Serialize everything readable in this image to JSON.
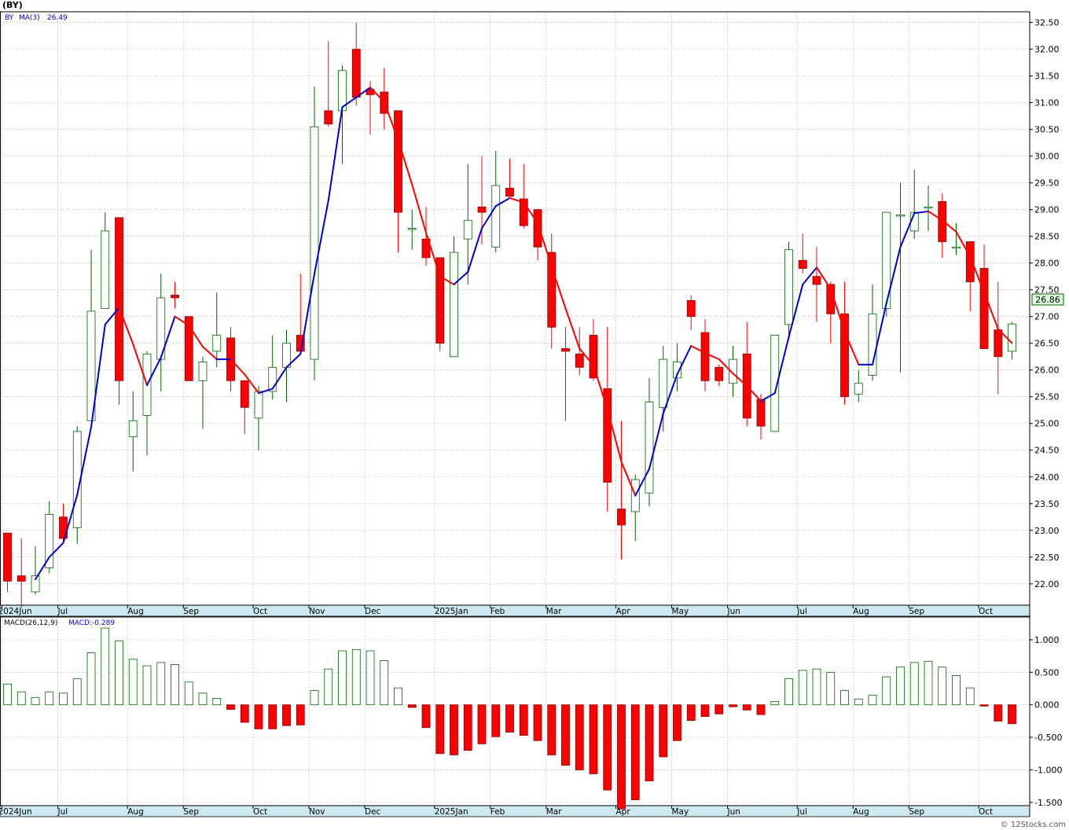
{
  "ticker_title": "(BY)",
  "legend_symbol": "BY",
  "legend_ma": "MA(3)",
  "legend_ma_value": "26.49",
  "last_price_label": "26.86",
  "macd_label": "MACD(26,12,9)",
  "macd_value_label": "MACD:-0.289",
  "watermark": "© 12Stocks.com",
  "colors": {
    "up": "#006400",
    "down": "#ff0000",
    "ma_up": "#0000cc",
    "ma_down": "#ff0000",
    "axis_band": "#cde8f0",
    "grid": "#bbbbbb",
    "legend_text": "#0000cc",
    "last_price_bg": "#ddffdd"
  },
  "chart_data": [
    {
      "type": "candlestick",
      "name": "price",
      "y_ticks": [
        "22.00",
        "22.50",
        "23.00",
        "23.50",
        "24.00",
        "24.50",
        "25.00",
        "25.50",
        "26.00",
        "26.50",
        "27.00",
        "27.50",
        "28.00",
        "28.50",
        "29.00",
        "29.50",
        "30.00",
        "30.50",
        "31.00",
        "31.50",
        "32.00",
        "32.50"
      ],
      "ylim": [
        21.6,
        32.7
      ],
      "x_tick_labels": [
        "2024Jun",
        "Jul",
        "Aug",
        "Sep",
        "Oct",
        "Nov",
        "Dec",
        "2025Jan",
        "Feb",
        "Mar",
        "Apr",
        "May",
        "Jun",
        "Jul",
        "Aug",
        "Sep",
        "Oct"
      ],
      "x_tick_week_index": [
        0,
        4,
        9,
        13,
        18,
        22,
        26,
        31,
        35,
        39,
        44,
        48,
        52,
        57,
        61,
        65,
        70
      ],
      "grid": true,
      "ma_period": 3,
      "candles": [
        {
          "o": 22.95,
          "h": 22.95,
          "l": 21.85,
          "c": 22.05
        },
        {
          "o": 22.15,
          "h": 22.85,
          "l": 21.55,
          "c": 22.05
        },
        {
          "o": 21.85,
          "h": 22.7,
          "l": 21.8,
          "c": 22.15
        },
        {
          "o": 22.3,
          "h": 23.55,
          "l": 22.2,
          "c": 23.3
        },
        {
          "o": 23.25,
          "h": 23.5,
          "l": 22.75,
          "c": 22.85
        },
        {
          "o": 23.05,
          "h": 24.95,
          "l": 22.75,
          "c": 24.85
        },
        {
          "o": 25.05,
          "h": 28.25,
          "l": 25.05,
          "c": 27.1
        },
        {
          "o": 27.15,
          "h": 28.95,
          "l": 27.15,
          "c": 28.6
        },
        {
          "o": 28.85,
          "h": 28.85,
          "l": 25.35,
          "c": 25.8
        },
        {
          "o": 24.75,
          "h": 25.6,
          "l": 24.1,
          "c": 25.05
        },
        {
          "o": 25.15,
          "h": 26.35,
          "l": 24.4,
          "c": 26.3
        },
        {
          "o": 26.2,
          "h": 27.8,
          "l": 25.6,
          "c": 27.35
        },
        {
          "o": 27.4,
          "h": 27.65,
          "l": 27.15,
          "c": 27.35
        },
        {
          "o": 27.0,
          "h": 27.0,
          "l": 25.8,
          "c": 25.8
        },
        {
          "o": 25.8,
          "h": 26.25,
          "l": 24.9,
          "c": 26.15
        },
        {
          "o": 26.35,
          "h": 27.45,
          "l": 26.05,
          "c": 26.65
        },
        {
          "o": 26.6,
          "h": 26.8,
          "l": 25.6,
          "c": 25.8
        },
        {
          "o": 25.8,
          "h": 25.8,
          "l": 24.8,
          "c": 25.3
        },
        {
          "o": 25.1,
          "h": 25.7,
          "l": 24.5,
          "c": 25.6
        },
        {
          "o": 25.6,
          "h": 26.65,
          "l": 25.45,
          "c": 26.05
        },
        {
          "o": 26.05,
          "h": 26.75,
          "l": 25.4,
          "c": 26.5
        },
        {
          "o": 26.65,
          "h": 27.8,
          "l": 26.35,
          "c": 26.35
        },
        {
          "o": 26.2,
          "h": 31.3,
          "l": 25.8,
          "c": 30.55
        },
        {
          "o": 30.85,
          "h": 32.15,
          "l": 30.55,
          "c": 30.6
        },
        {
          "o": 30.85,
          "h": 31.7,
          "l": 29.85,
          "c": 31.6
        },
        {
          "o": 32.0,
          "h": 32.5,
          "l": 30.95,
          "c": 31.1
        },
        {
          "o": 31.25,
          "h": 31.4,
          "l": 30.4,
          "c": 31.15
        },
        {
          "o": 31.2,
          "h": 31.65,
          "l": 30.5,
          "c": 30.8
        },
        {
          "o": 30.85,
          "h": 30.85,
          "l": 28.2,
          "c": 28.95
        },
        {
          "o": 28.65,
          "h": 29.0,
          "l": 28.25,
          "c": 28.65
        },
        {
          "o": 28.45,
          "h": 29.05,
          "l": 27.95,
          "c": 28.1
        },
        {
          "o": 28.1,
          "h": 28.1,
          "l": 26.35,
          "c": 26.5
        },
        {
          "o": 26.25,
          "h": 28.5,
          "l": 26.25,
          "c": 28.2
        },
        {
          "o": 28.45,
          "h": 29.85,
          "l": 27.6,
          "c": 28.8
        },
        {
          "o": 29.05,
          "h": 30.0,
          "l": 28.35,
          "c": 28.95
        },
        {
          "o": 28.3,
          "h": 30.1,
          "l": 28.2,
          "c": 29.45
        },
        {
          "o": 29.4,
          "h": 29.95,
          "l": 29.2,
          "c": 29.25
        },
        {
          "o": 29.2,
          "h": 29.85,
          "l": 28.65,
          "c": 28.7
        },
        {
          "o": 29.0,
          "h": 29.0,
          "l": 28.05,
          "c": 28.3
        },
        {
          "o": 28.2,
          "h": 28.55,
          "l": 26.4,
          "c": 26.8
        },
        {
          "o": 26.4,
          "h": 26.8,
          "l": 25.05,
          "c": 26.35
        },
        {
          "o": 26.3,
          "h": 26.8,
          "l": 25.9,
          "c": 26.05
        },
        {
          "o": 26.65,
          "h": 26.95,
          "l": 25.8,
          "c": 25.85
        },
        {
          "o": 25.65,
          "h": 26.8,
          "l": 23.35,
          "c": 23.9
        },
        {
          "o": 23.4,
          "h": 25.05,
          "l": 22.45,
          "c": 23.1
        },
        {
          "o": 23.35,
          "h": 24.05,
          "l": 22.8,
          "c": 23.95
        },
        {
          "o": 23.7,
          "h": 25.85,
          "l": 23.45,
          "c": 25.4
        },
        {
          "o": 25.3,
          "h": 26.45,
          "l": 24.85,
          "c": 26.2
        },
        {
          "o": 25.85,
          "h": 26.5,
          "l": 25.6,
          "c": 26.15
        },
        {
          "o": 27.3,
          "h": 27.4,
          "l": 26.75,
          "c": 27.0
        },
        {
          "o": 26.7,
          "h": 26.95,
          "l": 25.6,
          "c": 25.8
        },
        {
          "o": 26.05,
          "h": 26.1,
          "l": 25.7,
          "c": 25.8
        },
        {
          "o": 25.75,
          "h": 26.45,
          "l": 25.5,
          "c": 26.2
        },
        {
          "o": 26.3,
          "h": 26.9,
          "l": 24.95,
          "c": 25.1
        },
        {
          "o": 25.45,
          "h": 25.55,
          "l": 24.7,
          "c": 24.95
        },
        {
          "o": 24.85,
          "h": 26.65,
          "l": 24.85,
          "c": 26.65
        },
        {
          "o": 26.85,
          "h": 28.4,
          "l": 26.65,
          "c": 28.25
        },
        {
          "o": 28.05,
          "h": 28.55,
          "l": 27.8,
          "c": 27.9
        },
        {
          "o": 27.75,
          "h": 28.3,
          "l": 26.9,
          "c": 27.6
        },
        {
          "o": 27.6,
          "h": 27.65,
          "l": 26.5,
          "c": 27.05
        },
        {
          "o": 27.05,
          "h": 27.65,
          "l": 25.35,
          "c": 25.5
        },
        {
          "o": 25.55,
          "h": 26.0,
          "l": 25.4,
          "c": 25.75
        },
        {
          "o": 25.9,
          "h": 27.6,
          "l": 25.8,
          "c": 27.05
        },
        {
          "o": 27.15,
          "h": 28.95,
          "l": 27.0,
          "c": 28.95
        },
        {
          "o": 28.9,
          "h": 29.5,
          "l": 25.95,
          "c": 28.9
        },
        {
          "o": 28.6,
          "h": 29.75,
          "l": 28.45,
          "c": 28.95
        },
        {
          "o": 29.05,
          "h": 29.45,
          "l": 28.6,
          "c": 29.05
        },
        {
          "o": 29.15,
          "h": 29.3,
          "l": 28.1,
          "c": 28.4
        },
        {
          "o": 28.3,
          "h": 28.75,
          "l": 28.15,
          "c": 28.3
        },
        {
          "o": 28.4,
          "h": 28.4,
          "l": 27.1,
          "c": 27.65
        },
        {
          "o": 27.9,
          "h": 28.35,
          "l": 26.4,
          "c": 26.4
        },
        {
          "o": 26.75,
          "h": 27.65,
          "l": 25.55,
          "c": 26.25
        },
        {
          "o": 26.35,
          "h": 26.9,
          "l": 26.2,
          "c": 26.86
        }
      ]
    },
    {
      "type": "bar",
      "name": "MACD",
      "y_ticks": [
        "1.000",
        "0.500",
        "0.000",
        "-0.500",
        "-1.000",
        "-1.500"
      ],
      "ylim": [
        -1.55,
        1.35
      ],
      "x_tick_labels": [
        "2024Jun",
        "Jul",
        "Aug",
        "Sep",
        "Oct",
        "Nov",
        "Dec",
        "2025Jan",
        "Feb",
        "Mar",
        "Apr",
        "May",
        "Jun",
        "Jul",
        "Aug",
        "Sep",
        "Oct"
      ],
      "grid": true,
      "values": [
        0.32,
        0.2,
        0.11,
        0.2,
        0.18,
        0.4,
        0.8,
        1.18,
        0.98,
        0.7,
        0.6,
        0.65,
        0.62,
        0.35,
        0.18,
        0.1,
        -0.07,
        -0.27,
        -0.37,
        -0.37,
        -0.32,
        -0.31,
        0.22,
        0.55,
        0.83,
        0.85,
        0.83,
        0.68,
        0.26,
        -0.04,
        -0.35,
        -0.75,
        -0.77,
        -0.7,
        -0.6,
        -0.49,
        -0.42,
        -0.47,
        -0.55,
        -0.77,
        -0.93,
        -1.0,
        -1.06,
        -1.31,
        -1.6,
        -1.46,
        -1.17,
        -0.8,
        -0.55,
        -0.24,
        -0.18,
        -0.14,
        -0.03,
        -0.08,
        -0.15,
        0.05,
        0.4,
        0.53,
        0.55,
        0.5,
        0.22,
        0.09,
        0.15,
        0.43,
        0.58,
        0.65,
        0.67,
        0.58,
        0.45,
        0.26,
        -0.02,
        -0.25,
        -0.29
      ]
    }
  ]
}
